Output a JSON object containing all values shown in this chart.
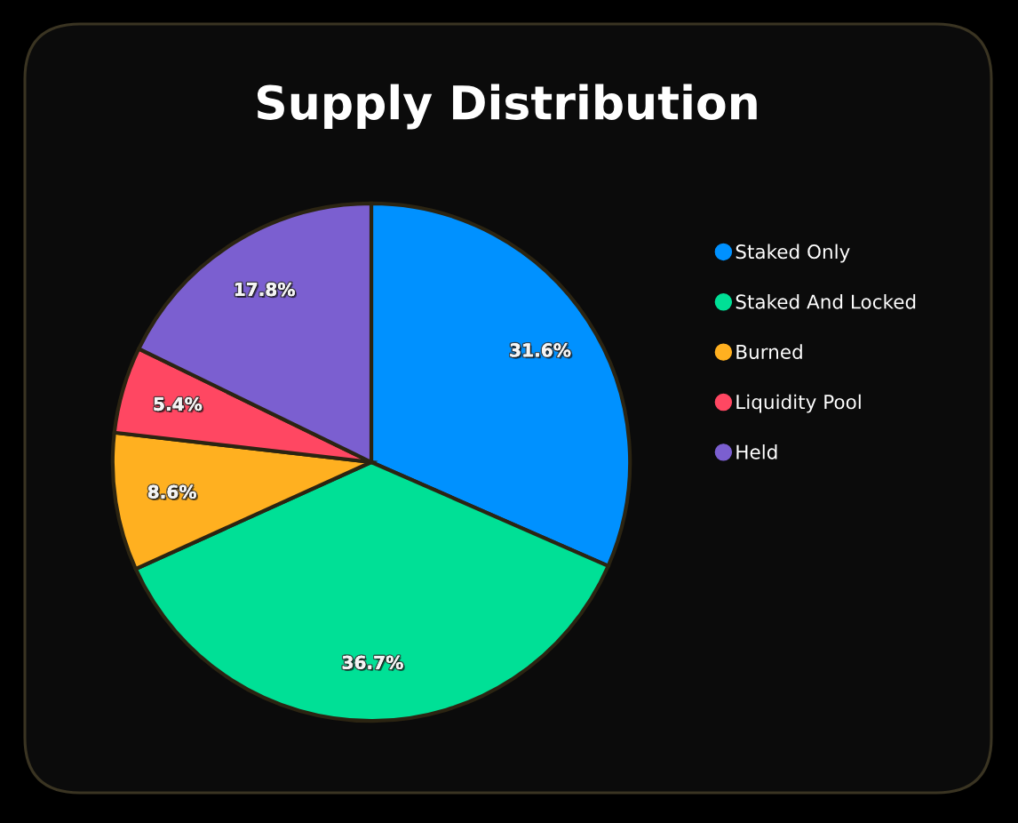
{
  "chart_data": {
    "type": "pie",
    "title": "Supply Distribution",
    "categories": [
      "Staked Only",
      "Staked And Locked",
      "Burned",
      "Liquidity Pool",
      "Held"
    ],
    "values": [
      31.6,
      36.7,
      8.6,
      5.4,
      17.8
    ],
    "colors": [
      "#0091ff",
      "#00e096",
      "#ffb020",
      "#ff4762",
      "#7b5fd0"
    ],
    "value_labels": [
      "31.6%",
      "36.7%",
      "8.6%",
      "5.4%",
      "17.8%"
    ],
    "legend": "right"
  }
}
